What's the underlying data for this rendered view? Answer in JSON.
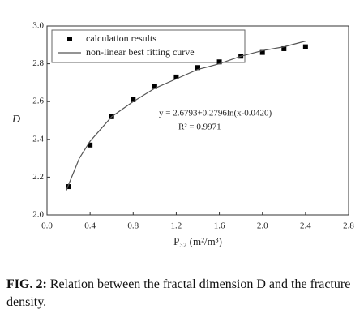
{
  "chart_data": {
    "type": "scatter",
    "xlabel": "P₃₂ (m²/m³)",
    "ylabel": "D",
    "xlim": [
      0,
      2.8
    ],
    "ylim": [
      2.0,
      3.0
    ],
    "xticks": [
      {
        "value": 0,
        "label": "0.0"
      },
      0.4,
      0.8,
      1.2,
      1.6,
      {
        "value": 2,
        "label": "2.0"
      },
      2.4,
      2.8
    ],
    "yticks": [
      {
        "value": 2,
        "label": "2.0"
      },
      2.2,
      2.4,
      2.6,
      2.8,
      {
        "value": 3,
        "label": "3.0"
      }
    ],
    "legend": "upper left",
    "series": [
      {
        "name": "calculation results",
        "color": "#000000",
        "style": "markers",
        "x": [
          0.2,
          0.4,
          0.6,
          0.8,
          1.0,
          1.2,
          1.4,
          1.6,
          1.8,
          2.0,
          2.2,
          2.4
        ],
        "values": [
          2.15,
          2.37,
          2.52,
          2.61,
          2.68,
          2.73,
          2.78,
          2.81,
          2.84,
          2.86,
          2.88,
          2.89
        ]
      },
      {
        "name": "non-linear best fitting curve",
        "color": "#555555",
        "style": "line",
        "x": [
          0.18,
          0.2,
          0.3,
          0.4,
          0.6,
          0.8,
          1.0,
          1.2,
          1.4,
          1.6,
          1.8,
          2.0,
          2.2,
          2.4
        ],
        "values": [
          2.13,
          2.16,
          2.3,
          2.39,
          2.52,
          2.6,
          2.67,
          2.72,
          2.77,
          2.8,
          2.84,
          2.87,
          2.89,
          2.92
        ]
      }
    ],
    "annotations": [
      "y = 2.6793+0.2796ln(x-0.0420)",
      "R² = 0.9971"
    ]
  },
  "caption": {
    "label": "FIG. 2:",
    "text": "Relation between the fractal dimension D and the fracture density."
  }
}
